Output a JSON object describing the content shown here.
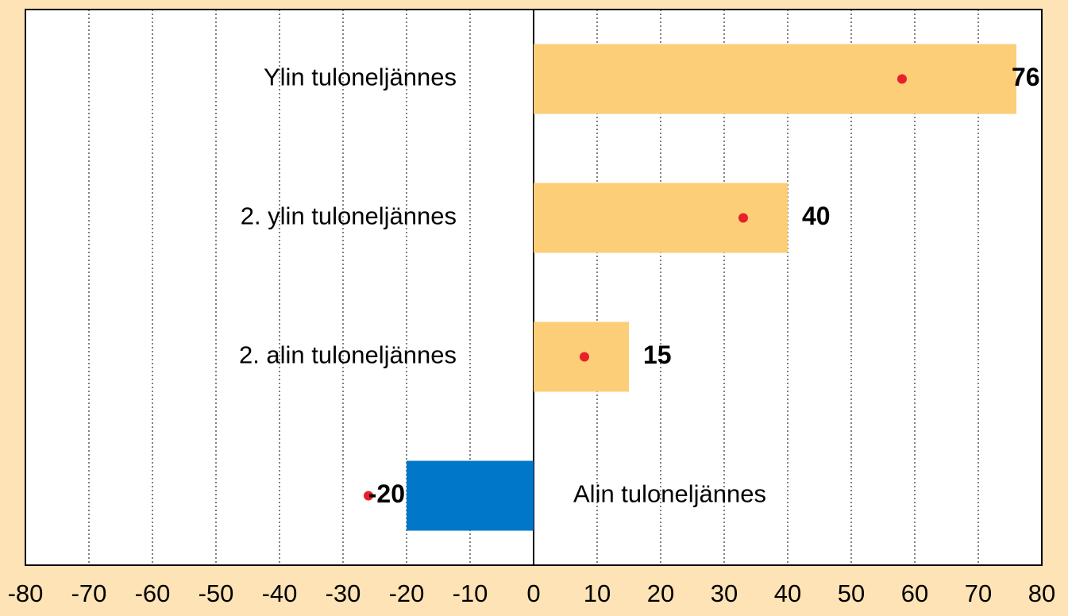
{
  "chart_data": {
    "type": "bar",
    "orientation": "horizontal",
    "categories": [
      "Ylin tuloneljännes",
      "2. ylin tuloneljännes",
      "2. alin tuloneljännes",
      "Alin tuloneljännes"
    ],
    "series": [
      {
        "colors": [
          "#fdce78",
          "#fdce78",
          "#fdce78",
          "#0077c8"
        ],
        "values": [
          76,
          40,
          15,
          -20
        ]
      },
      {
        "color": "#e8202a",
        "values": [
          58,
          33,
          8,
          -26
        ]
      }
    ],
    "xlim": [
      -80,
      80
    ],
    "xticks": [
      -80,
      -70,
      -60,
      -50,
      -40,
      -30,
      -20,
      -10,
      0,
      10,
      20,
      30,
      40,
      50,
      60,
      70,
      80
    ],
    "grid": true
  }
}
